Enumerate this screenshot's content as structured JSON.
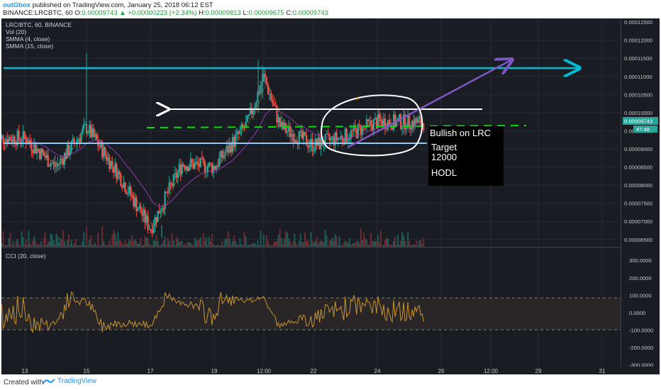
{
  "header": {
    "author": "outGbox",
    "published_text": " published on TradingView.com, January 25, 2018 06:12 EST",
    "symbol_line_prefix": "BINANCE:LRCBTC, 60",
    "open": "0.00009743",
    "change": "▲ +0.00000223 (+2.34%)",
    "high": "0.00009813",
    "low": "0.00009675",
    "close": "0.00009743",
    "o_label": "O:",
    "h_label": "H:",
    "l_label": "L:",
    "c_label": "C:"
  },
  "legend": {
    "symbol": "LRC/BTC, 60, BINANCE",
    "vol": "Vol (20)",
    "smma4": "SMMA (4, close)",
    "smma15": "SMMA (15, close)",
    "cci": "CCI (20, close)"
  },
  "price_axis": [
    "0.00012500",
    "0.00012000",
    "0.00011500",
    "0.00011000",
    "0.00010500",
    "0.00010000",
    "0.00009500",
    "0.00009000",
    "0.00008500",
    "0.00008000",
    "0.00007500",
    "0.00007000",
    "0.00006500"
  ],
  "price_tag": "0.00009743",
  "countdown_tag": "47:48",
  "cci_axis": [
    "300.0000",
    "200.0000",
    "100.0000",
    "0.0000",
    "-100.0000",
    "-200.0000",
    "-300.0000"
  ],
  "time_axis": [
    "13",
    "15",
    "17",
    "19",
    "12:00",
    "22",
    "24",
    "26",
    "12:00",
    "29",
    "31"
  ],
  "annotations": {
    "bullish": "Bullish on LRC",
    "target": "Target",
    "target_value": "12000",
    "hodl": "HODL"
  },
  "footer": {
    "created_with": "Created with",
    "brand": "TradingView"
  },
  "colors": {
    "background": "#1a1c24",
    "up_candle": "#26a69a",
    "down_candle": "#ef5350",
    "resistance_line": "#00bcd4",
    "support_line": "#90caf9",
    "dashed_level": "#00e000",
    "trend_arrow": "#7e57c2",
    "cci_line": "#c8932c"
  },
  "chart_data": {
    "type": "candlestick",
    "symbol": "LRC/BTC",
    "interval": "60",
    "exchange": "BINANCE",
    "ylim": [
      6.3e-05,
      0.000126
    ],
    "levels": {
      "resistance": 0.0001115,
      "white_arrow_level": 0.0001,
      "dashed_green": 9.71e-05,
      "support": 9.12e-05
    },
    "close_profile": [
      {
        "x": "13",
        "y": 9.3e-05
      },
      {
        "x": "14",
        "y": 8.5e-05
      },
      {
        "x": "15",
        "y": 9.6e-05
      },
      {
        "x": "16",
        "y": 8.3e-05
      },
      {
        "x": "17",
        "y": 6.8e-05
      },
      {
        "x": "18",
        "y": 8.6e-05
      },
      {
        "x": "19",
        "y": 8.5e-05
      },
      {
        "x": "20",
        "y": 9.7e-05
      },
      {
        "x": "20 12:00",
        "y": 0.00011
      },
      {
        "x": "21",
        "y": 9.6e-05
      },
      {
        "x": "22",
        "y": 9.1e-05
      },
      {
        "x": "23",
        "y": 9.35e-05
      },
      {
        "x": "24",
        "y": 9.75e-05
      },
      {
        "x": "25",
        "y": 9.74e-05
      }
    ],
    "cci": {
      "name": "CCI (20, close)",
      "ylim": [
        -310,
        370
      ],
      "bands": [
        100,
        -100
      ]
    }
  }
}
